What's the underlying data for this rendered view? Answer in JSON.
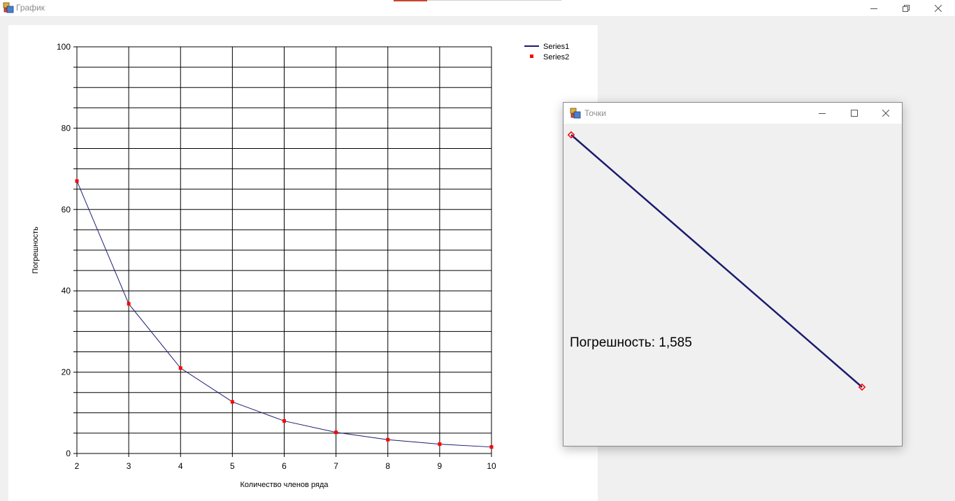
{
  "main_window": {
    "title": "График",
    "buttons": {
      "minimize": "minimize",
      "restore": "restore",
      "close": "close"
    }
  },
  "legend": {
    "series1": "Series1",
    "series2": "Series2"
  },
  "colors": {
    "series1": "#1b1b6e",
    "series2": "#ff0000",
    "grid": "#000000"
  },
  "chart_data": {
    "type": "line",
    "xlabel": "Количество членов ряда",
    "ylabel": "Погрешность",
    "xlim": [
      2,
      10
    ],
    "ylim": [
      0,
      100
    ],
    "x_ticks": [
      2,
      3,
      4,
      5,
      6,
      7,
      8,
      9,
      10
    ],
    "y_ticks": [
      0,
      20,
      40,
      60,
      80,
      100
    ],
    "minor_grid_step_y": 5,
    "grid": true,
    "legend_position": "top-right",
    "series": [
      {
        "name": "Series1",
        "style": "line",
        "x": [
          2,
          3,
          4,
          5,
          6,
          7,
          8,
          9,
          10
        ],
        "y": [
          67,
          36.8,
          21,
          12.7,
          8,
          5.2,
          3.4,
          2.3,
          1.6
        ]
      },
      {
        "name": "Series2",
        "style": "points",
        "x": [
          2,
          3,
          4,
          5,
          6,
          7,
          8,
          9,
          10
        ],
        "y": [
          67,
          36.8,
          21,
          12.7,
          8,
          5.2,
          3.4,
          2.3,
          1.6
        ]
      }
    ]
  },
  "dialog": {
    "title": "Точки",
    "error_text": "Погрешность: 1,585",
    "buttons": {
      "minimize": "minimize",
      "maximize": "maximize",
      "close": "close"
    }
  }
}
